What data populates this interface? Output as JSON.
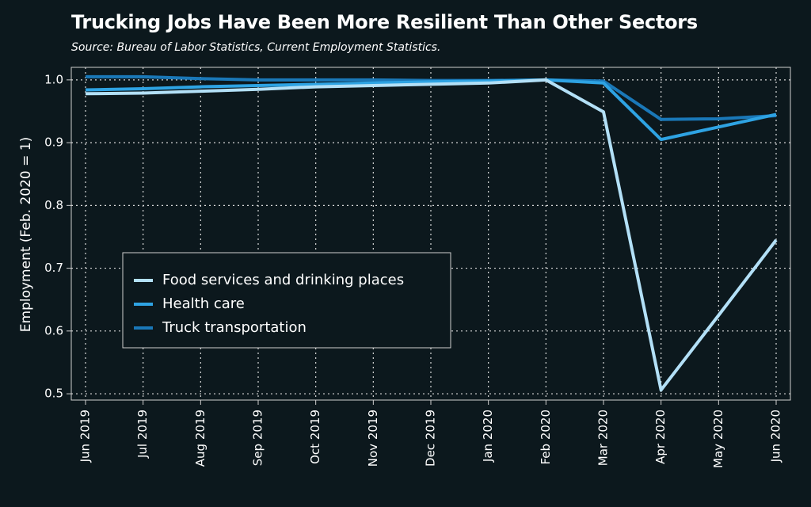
{
  "chart_data": {
    "type": "line",
    "title": "Trucking Jobs Have Been More Resilient Than Other Sectors",
    "subtitle": "Source: Bureau of Labor Statistics, Current Employment Statistics.",
    "xlabel": "",
    "ylabel": "Employment (Feb. 2020 = 1)",
    "x": [
      "Jun 2019",
      "Jul 2019",
      "Aug 2019",
      "Sep 2019",
      "Oct 2019",
      "Nov 2019",
      "Dec 2019",
      "Jan 2020",
      "Feb 2020",
      "Mar 2020",
      "Apr 2020",
      "May 2020",
      "Jun 2020"
    ],
    "y_ticks": [
      "0.5",
      "0.6",
      "0.7",
      "0.8",
      "0.9",
      "1.0"
    ],
    "ylim": [
      0.49,
      1.02
    ],
    "grid": true,
    "legend_position": "bottom-left",
    "series": [
      {
        "name": "Food services and drinking places",
        "color": "#b3e0f7",
        "values": [
          0.978,
          0.979,
          0.982,
          0.985,
          0.989,
          0.991,
          0.993,
          0.995,
          1.0,
          0.949,
          0.506,
          0.625,
          0.745
        ]
      },
      {
        "name": "Health care",
        "color": "#2ea3e3",
        "values": [
          0.984,
          0.986,
          0.989,
          0.991,
          0.993,
          0.995,
          0.997,
          0.998,
          1.0,
          0.995,
          0.905,
          0.925,
          0.945
        ]
      },
      {
        "name": "Truck transportation",
        "color": "#1a78b8",
        "values": [
          1.005,
          1.005,
          1.002,
          1.0,
          1.0,
          1.0,
          0.999,
          0.999,
          1.0,
          0.998,
          0.937,
          0.938,
          0.943
        ]
      }
    ]
  }
}
